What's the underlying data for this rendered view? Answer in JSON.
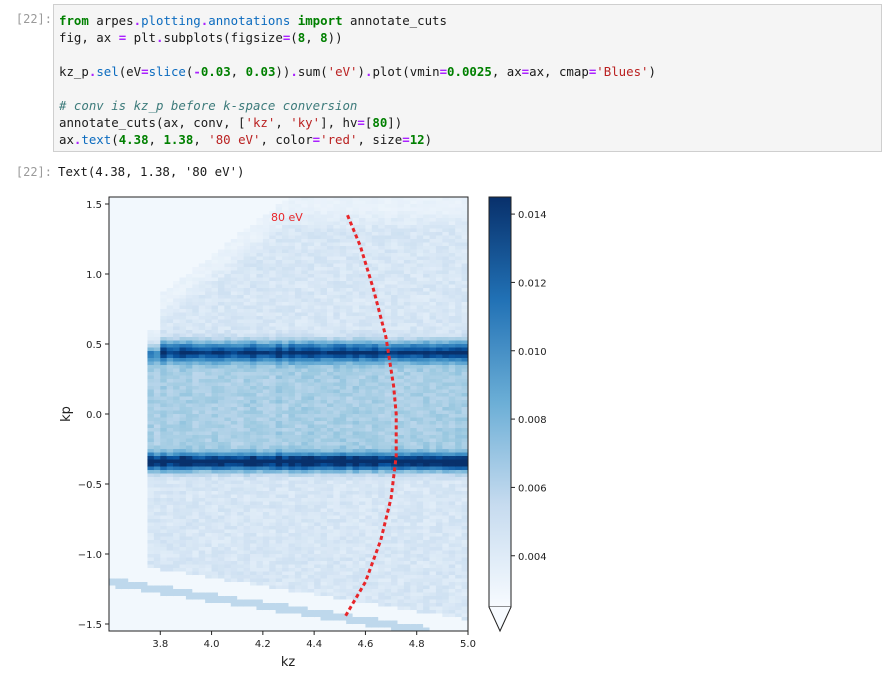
{
  "notebook": {
    "input_prompt": "[22]:",
    "output_prompt": "[22]:",
    "code_lines": [
      [
        {
          "t": "from",
          "c": "kw"
        },
        {
          "t": " arpes",
          "c": ""
        },
        {
          "t": ".",
          "c": "op"
        },
        {
          "t": "plotting",
          "c": "fn"
        },
        {
          "t": ".",
          "c": "op"
        },
        {
          "t": "annotations",
          "c": "fn"
        },
        {
          "t": " ",
          "c": ""
        },
        {
          "t": "import",
          "c": "kw"
        },
        {
          "t": " annotate_cuts",
          "c": ""
        }
      ],
      [
        {
          "t": "fig, ax ",
          "c": ""
        },
        {
          "t": "=",
          "c": "op"
        },
        {
          "t": " plt",
          "c": ""
        },
        {
          "t": ".",
          "c": "op"
        },
        {
          "t": "subplots(figsize",
          "c": ""
        },
        {
          "t": "=",
          "c": "op"
        },
        {
          "t": "(",
          "c": ""
        },
        {
          "t": "8",
          "c": "num"
        },
        {
          "t": ", ",
          "c": ""
        },
        {
          "t": "8",
          "c": "num"
        },
        {
          "t": "))",
          "c": ""
        }
      ],
      [],
      [
        {
          "t": "kz_p",
          "c": ""
        },
        {
          "t": ".",
          "c": "op"
        },
        {
          "t": "sel",
          "c": "fn"
        },
        {
          "t": "(eV",
          "c": ""
        },
        {
          "t": "=",
          "c": "op"
        },
        {
          "t": "slice",
          "c": "fn"
        },
        {
          "t": "(",
          "c": ""
        },
        {
          "t": "-",
          "c": "op"
        },
        {
          "t": "0.03",
          "c": "num"
        },
        {
          "t": ", ",
          "c": ""
        },
        {
          "t": "0.03",
          "c": "num"
        },
        {
          "t": "))",
          "c": ""
        },
        {
          "t": ".",
          "c": "op"
        },
        {
          "t": "sum(",
          "c": ""
        },
        {
          "t": "'eV'",
          "c": "str"
        },
        {
          "t": ")",
          "c": ""
        },
        {
          "t": ".",
          "c": "op"
        },
        {
          "t": "plot(vmin",
          "c": ""
        },
        {
          "t": "=",
          "c": "op"
        },
        {
          "t": "0.0025",
          "c": "num"
        },
        {
          "t": ", ax",
          "c": ""
        },
        {
          "t": "=",
          "c": "op"
        },
        {
          "t": "ax, cmap",
          "c": ""
        },
        {
          "t": "=",
          "c": "op"
        },
        {
          "t": "'Blues'",
          "c": "str"
        },
        {
          "t": ")",
          "c": ""
        }
      ],
      [],
      [
        {
          "t": "# conv is kz_p before k-space conversion",
          "c": "cm"
        }
      ],
      [
        {
          "t": "annotate_cuts(ax, conv, [",
          "c": ""
        },
        {
          "t": "'kz'",
          "c": "str"
        },
        {
          "t": ", ",
          "c": ""
        },
        {
          "t": "'ky'",
          "c": "str"
        },
        {
          "t": "], hv",
          "c": ""
        },
        {
          "t": "=",
          "c": "op"
        },
        {
          "t": "[",
          "c": ""
        },
        {
          "t": "80",
          "c": "num"
        },
        {
          "t": "])",
          "c": ""
        }
      ],
      [
        {
          "t": "ax",
          "c": ""
        },
        {
          "t": ".",
          "c": "op"
        },
        {
          "t": "text",
          "c": "fn"
        },
        {
          "t": "(",
          "c": ""
        },
        {
          "t": "4.38",
          "c": "num"
        },
        {
          "t": ", ",
          "c": ""
        },
        {
          "t": "1.38",
          "c": "num"
        },
        {
          "t": ", ",
          "c": ""
        },
        {
          "t": "'80 eV'",
          "c": "str"
        },
        {
          "t": ", color",
          "c": ""
        },
        {
          "t": "=",
          "c": "op"
        },
        {
          "t": "'red'",
          "c": "str"
        },
        {
          "t": ", size",
          "c": ""
        },
        {
          "t": "=",
          "c": "op"
        },
        {
          "t": "12",
          "c": "num"
        },
        {
          "t": ")",
          "c": ""
        }
      ]
    ],
    "output_text": "Text(4.38, 1.38, '80 eV')"
  },
  "chart_data": {
    "type": "heatmap",
    "xlabel": "kz",
    "ylabel": "kp",
    "xlim": [
      3.6,
      5.0
    ],
    "ylim": [
      -1.55,
      1.55
    ],
    "xticks": [
      3.8,
      4.0,
      4.2,
      4.4,
      4.6,
      4.8,
      5.0
    ],
    "xtick_labels": [
      "3.8",
      "4.0",
      "4.2",
      "4.4",
      "4.6",
      "4.8",
      "5.0"
    ],
    "yticks": [
      1.5,
      1.0,
      0.5,
      0.0,
      -0.5,
      -1.0,
      -1.5
    ],
    "ytick_labels": [
      "1.5",
      "1.0",
      "0.5",
      "0.0",
      "−0.5",
      "−1.0",
      "−1.5"
    ],
    "colormap": "Blues",
    "colorbar": {
      "ticks": [
        0.004,
        0.006,
        0.008,
        0.01,
        0.012,
        0.014
      ],
      "tick_labels": [
        "0.004",
        "0.006",
        "0.008",
        "0.010",
        "0.012",
        "0.014"
      ],
      "vmin": 0.0025,
      "vmax": 0.0145,
      "extend": "min"
    },
    "bands": [
      {
        "kp": 0.45,
        "intensity": 0.0125
      },
      {
        "kp": -0.35,
        "intensity": 0.0145
      }
    ],
    "annotation": {
      "text": "80 eV",
      "x": 4.38,
      "y": 1.38,
      "color": "#e8262a"
    },
    "cut_curve": {
      "color": "#e8262a",
      "points": [
        [
          4.53,
          1.42
        ],
        [
          4.58,
          1.2
        ],
        [
          4.63,
          0.9
        ],
        [
          4.68,
          0.55
        ],
        [
          4.71,
          0.2
        ],
        [
          4.72,
          0.0
        ],
        [
          4.72,
          -0.3
        ],
        [
          4.7,
          -0.6
        ],
        [
          4.66,
          -0.9
        ],
        [
          4.6,
          -1.2
        ],
        [
          4.52,
          -1.45
        ]
      ]
    }
  }
}
